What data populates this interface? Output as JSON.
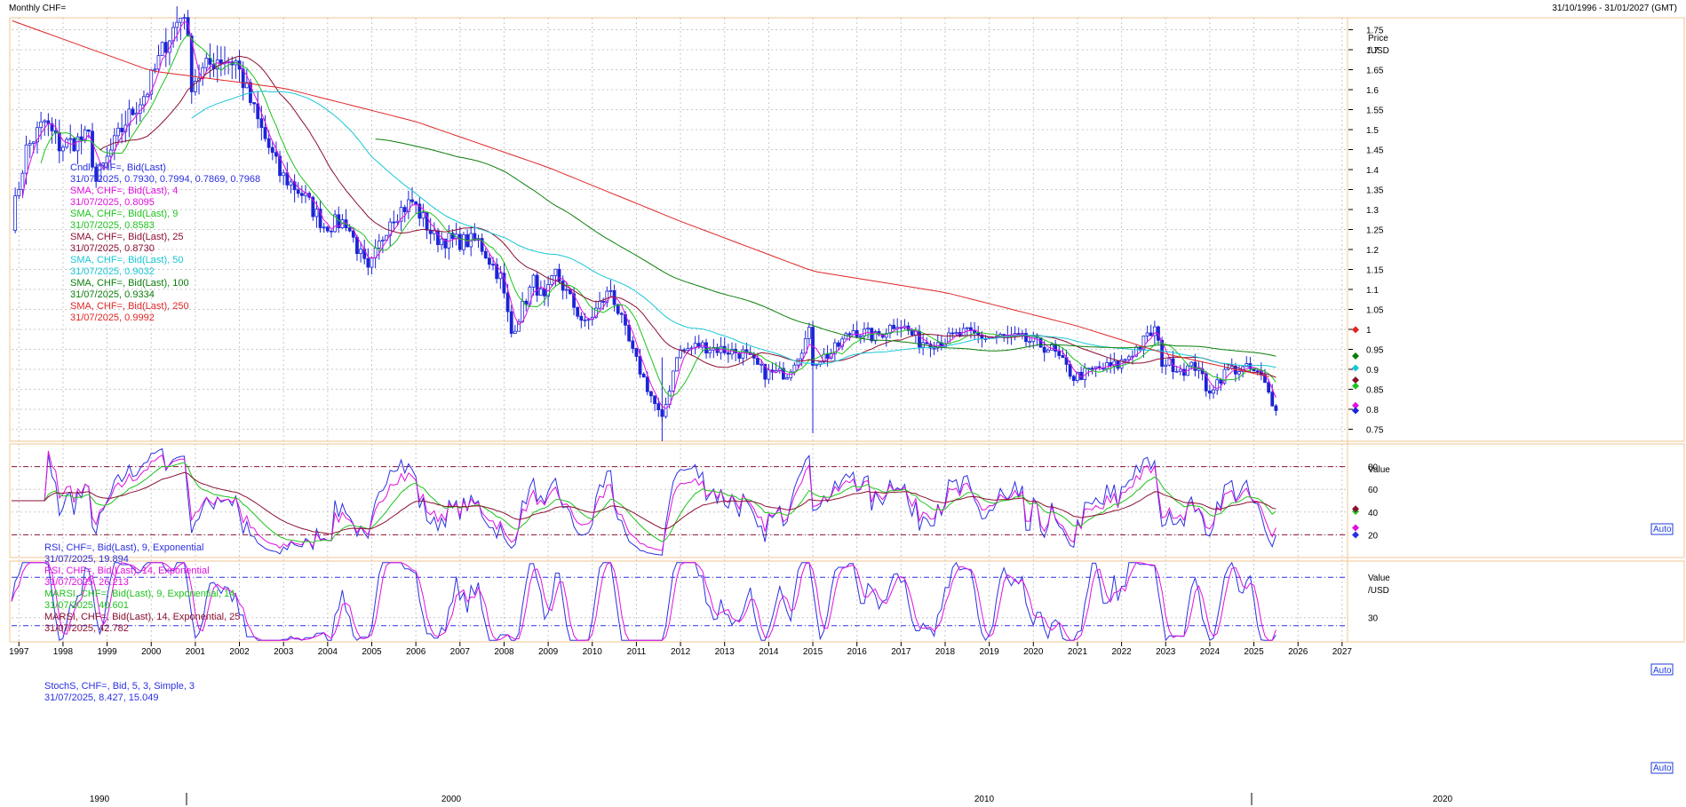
{
  "window": {
    "title": "Monthly CHF=",
    "date_range": "31/10/1996 - 31/01/2027 (GMT)"
  },
  "colors": {
    "candle": "#1c24d6",
    "sma4": "#e010e0",
    "sma9": "#1ec21e",
    "sma25": "#8b1030",
    "sma50": "#18c7d6",
    "sma100": "#0b7d0b",
    "sma250": "#e02525",
    "rsi9": "#2b30e0",
    "rsi14": "#e010e0",
    "marsi9": "#1ec21e",
    "marsi14": "#8b1030",
    "stoch_k": "#2b30e0",
    "stoch_d": "#e010e0",
    "grid": "#c8c8c8"
  },
  "price_panel": {
    "axis_title": [
      "Price",
      "/USD"
    ],
    "ticks": [
      "1.75",
      "1.7",
      "1.65",
      "1.6",
      "1.55",
      "1.5",
      "1.45",
      "1.4",
      "1.35",
      "1.3",
      "1.25",
      "1.2",
      "1.15",
      "1.1",
      "1.05",
      "1",
      "0.95",
      "0.9",
      "0.85",
      "0.8",
      "0.75"
    ],
    "legend": [
      {
        "title": "Cndl, CHF=, Bid(Last)",
        "value": "31/07/2025, 0.7930, 0.7994, 0.7869, 0.7968",
        "color": "#2b30e0"
      },
      {
        "title": "SMA, CHF=, Bid(Last),  4",
        "value": "31/07/2025, 0.8095",
        "color": "#e010e0"
      },
      {
        "title": "SMA, CHF=, Bid(Last),  9",
        "value": "31/07/2025, 0.8583",
        "color": "#1ec21e"
      },
      {
        "title": "SMA, CHF=, Bid(Last),  25",
        "value": "31/07/2025, 0.8730",
        "color": "#8b1030"
      },
      {
        "title": "SMA, CHF=, Bid(Last),  50",
        "value": "31/07/2025, 0.9032",
        "color": "#18c7d6"
      },
      {
        "title": "SMA, CHF=, Bid(Last),  100",
        "value": "31/07/2025, 0.9334",
        "color": "#0b7d0b"
      },
      {
        "title": "SMA, CHF=, Bid(Last),  250",
        "value": "31/07/2025, 0.9992",
        "color": "#e02525"
      }
    ],
    "auto_label": "Auto"
  },
  "rsi_panel": {
    "axis_title": [
      "Value"
    ],
    "ticks": [
      "80",
      "60",
      "40",
      "20"
    ],
    "legend": [
      {
        "title": "RSI, CHF=, Bid(Last),  9, Exponential",
        "value": "31/07/2025, 19.894",
        "color": "#2b30e0"
      },
      {
        "title": "RSI, CHF=, Bid(Last),  14, Exponential",
        "value": "31/07/2025, 26.213",
        "color": "#e010e0"
      },
      {
        "title": "MARSI, CHF=, Bid(Last),  9, Exponential, 14",
        "value": "31/07/2025, 40.601",
        "color": "#1ec21e"
      },
      {
        "title": "MARSI, CHF=, Bid(Last),  14, Exponential, 25",
        "value": "31/07/2025, 42.782",
        "color": "#8b1030"
      }
    ],
    "auto_label": "Auto"
  },
  "stoch_panel": {
    "axis_title": [
      "Value",
      "/USD"
    ],
    "ticks": [
      "30"
    ],
    "legend": [
      {
        "title": "StochS, CHF=, Bid,  5, 3, Simple, 3",
        "value": "31/07/2025, 8.427, 15.049",
        "color": "#2b30e0"
      }
    ],
    "auto_label": "Auto"
  },
  "x_axis": {
    "years": [
      "1997",
      "1998",
      "1999",
      "2000",
      "2001",
      "2002",
      "2003",
      "2004",
      "2005",
      "2006",
      "2007",
      "2008",
      "2009",
      "2010",
      "2011",
      "2012",
      "2013",
      "2014",
      "2015",
      "2016",
      "2017",
      "2018",
      "2019",
      "2020",
      "2021",
      "2022",
      "2023",
      "2024",
      "2025",
      "2026",
      "2027"
    ],
    "decades": [
      "1990",
      "2000",
      "2010",
      "2020"
    ]
  },
  "chart_data": [
    {
      "type": "candlestick",
      "title": "Monthly CHF=",
      "ylabel": "Price /USD",
      "ylim": [
        0.72,
        1.78
      ],
      "x_range": [
        "1996-10",
        "2027-01"
      ],
      "grid": true,
      "anchors": [
        [
          "1996-11",
          1.27
        ],
        [
          "1997-03",
          1.45
        ],
        [
          "1997-08",
          1.52
        ],
        [
          "1997-12",
          1.46
        ],
        [
          "1998-08",
          1.48
        ],
        [
          "1998-10",
          1.37
        ],
        [
          "1999-06",
          1.52
        ],
        [
          "1999-12",
          1.6
        ],
        [
          "2000-05",
          1.72
        ],
        [
          "2000-10",
          1.8
        ],
        [
          "2000-12",
          1.62
        ],
        [
          "2001-07",
          1.68
        ],
        [
          "2001-12",
          1.67
        ],
        [
          "2002-06",
          1.52
        ],
        [
          "2002-12",
          1.39
        ],
        [
          "2003-06",
          1.34
        ],
        [
          "2003-12",
          1.26
        ],
        [
          "2004-06",
          1.27
        ],
        [
          "2004-12",
          1.14
        ],
        [
          "2005-06",
          1.28
        ],
        [
          "2005-12",
          1.32
        ],
        [
          "2006-06",
          1.23
        ],
        [
          "2006-12",
          1.22
        ],
        [
          "2007-06",
          1.22
        ],
        [
          "2007-12",
          1.13
        ],
        [
          "2008-03",
          0.99
        ],
        [
          "2008-09",
          1.12
        ],
        [
          "2008-12",
          1.07
        ],
        [
          "2009-03",
          1.14
        ],
        [
          "2009-11",
          1.01
        ],
        [
          "2010-06",
          1.1
        ],
        [
          "2010-12",
          0.94
        ],
        [
          "2011-08",
          0.77
        ],
        [
          "2011-12",
          0.94
        ],
        [
          "2012-06",
          0.96
        ],
        [
          "2013-06",
          0.94
        ],
        [
          "2013-12",
          0.89
        ],
        [
          "2014-06",
          0.89
        ],
        [
          "2014-12",
          0.99
        ],
        [
          "2015-01",
          0.92
        ],
        [
          "2015-06",
          0.94
        ],
        [
          "2015-12",
          1.0
        ],
        [
          "2016-06",
          0.98
        ],
        [
          "2016-12",
          1.02
        ],
        [
          "2017-06",
          0.97
        ],
        [
          "2017-12",
          0.97
        ],
        [
          "2018-06",
          0.99
        ],
        [
          "2018-12",
          0.98
        ],
        [
          "2019-06",
          0.98
        ],
        [
          "2019-12",
          0.97
        ],
        [
          "2020-06",
          0.95
        ],
        [
          "2020-12",
          0.88
        ],
        [
          "2021-06",
          0.9
        ],
        [
          "2021-12",
          0.91
        ],
        [
          "2022-06",
          0.96
        ],
        [
          "2022-10",
          1.0
        ],
        [
          "2022-12",
          0.92
        ],
        [
          "2023-06",
          0.9
        ],
        [
          "2023-10",
          0.91
        ],
        [
          "2023-12",
          0.84
        ],
        [
          "2024-06",
          0.9
        ],
        [
          "2024-12",
          0.9
        ],
        [
          "2025-03",
          0.88
        ],
        [
          "2025-07",
          0.8
        ]
      ],
      "series": [
        {
          "name": "Cndl, CHF=, Bid(Last)",
          "last": [
            0.793,
            0.7994,
            0.7869,
            0.7968
          ]
        },
        {
          "name": "SMA, CHF=, Bid(Last),  4",
          "period": 4,
          "last": 0.8095
        },
        {
          "name": "SMA, CHF=, Bid(Last),  9",
          "period": 9,
          "last": 0.8583
        },
        {
          "name": "SMA, CHF=, Bid(Last),  25",
          "period": 25,
          "last": 0.873
        },
        {
          "name": "SMA, CHF=, Bid(Last),  50",
          "period": 50,
          "last": 0.9032
        },
        {
          "name": "SMA, CHF=, Bid(Last),  100",
          "period": 100,
          "last": 0.9334
        },
        {
          "name": "SMA, CHF=, Bid(Last),  250",
          "period": 250,
          "last": 0.9992
        }
      ]
    },
    {
      "type": "line",
      "ylabel": "Value",
      "ylim": [
        0,
        100
      ],
      "reference_lines": [
        20,
        80
      ],
      "series": [
        {
          "name": "RSI, CHF=, Bid(Last),  9, Exponential",
          "last": 19.894
        },
        {
          "name": "RSI, CHF=, Bid(Last),  14, Exponential",
          "last": 26.213
        },
        {
          "name": "MARSI, CHF=, Bid(Last),  9, Exponential, 14",
          "last": 40.601
        },
        {
          "name": "MARSI, CHF=, Bid(Last),  14, Exponential, 25",
          "last": 42.782
        }
      ]
    },
    {
      "type": "line",
      "ylabel": "Value /USD",
      "ylim": [
        0,
        100
      ],
      "reference_lines": [
        20,
        80
      ],
      "series": [
        {
          "name": "StochS, CHF=, Bid,  5, 3, Simple, 3",
          "last": [
            8.427,
            15.049
          ]
        }
      ]
    }
  ]
}
